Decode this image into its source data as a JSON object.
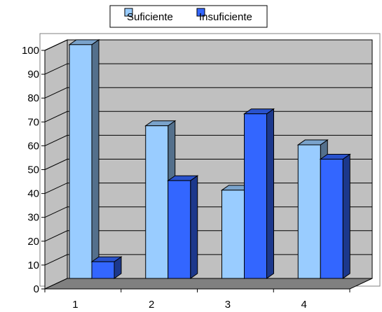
{
  "chart_data": {
    "type": "bar",
    "categories": [
      "1",
      "2",
      "3",
      "4"
    ],
    "series": [
      {
        "name": "Suficiente",
        "values": [
          98,
          64,
          37,
          56
        ],
        "color": "#99CCFF"
      },
      {
        "name": "Insuficiente",
        "values": [
          7,
          41,
          69,
          50
        ],
        "color": "#3366FF"
      }
    ],
    "ylim": [
      0,
      100
    ],
    "yticks": [
      0,
      10,
      20,
      30,
      40,
      50,
      60,
      70,
      80,
      90,
      100
    ],
    "grid": true,
    "legend_position": "top-center",
    "three_d": true,
    "wall_color": "#C0C0C0",
    "floor_color": "#808080"
  }
}
